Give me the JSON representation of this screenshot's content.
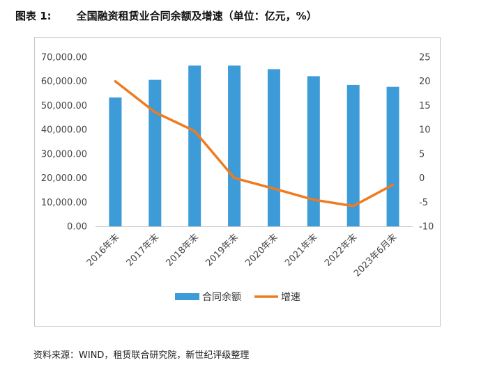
{
  "figure": {
    "label": "图表 1:",
    "title": "全国融资租赁业合同余额及增速（单位：亿元，%）"
  },
  "source": "资料来源：WIND，租赁联合研究院，新世纪评级整理",
  "colors": {
    "bar": "#3d9bd8",
    "line": "#ef7b1f",
    "axis": "#c8c8c8",
    "text": "#444444"
  },
  "chart_data": {
    "type": "bar+line",
    "categories": [
      "2016年末",
      "2017年末",
      "2018年末",
      "2019年末",
      "2020年末",
      "2021年末",
      "2022年末",
      "2023年6月末"
    ],
    "series": [
      {
        "name": "合同余额",
        "type": "bar",
        "axis": "left",
        "values": [
          53300,
          60600,
          66500,
          66500,
          65000,
          62100,
          58500,
          57700
        ]
      },
      {
        "name": "增速",
        "type": "line",
        "axis": "right",
        "values": [
          20.0,
          13.6,
          9.7,
          0.0,
          -2.2,
          -4.5,
          -5.8,
          -1.4
        ]
      }
    ],
    "y_left": {
      "min": 0,
      "max": 70000,
      "step": 10000,
      "tick_labels": [
        "0.00",
        "10,000.00",
        "20,000.00",
        "30,000.00",
        "40,000.00",
        "50,000.00",
        "60,000.00",
        "70,000.00"
      ]
    },
    "y_right": {
      "min": -10,
      "max": 25,
      "step": 5,
      "tick_labels": [
        "-10",
        "-5",
        "0",
        "5",
        "10",
        "15",
        "20",
        "25"
      ]
    },
    "legend": {
      "position": "bottom",
      "items": [
        "合同余额",
        "增速"
      ]
    }
  }
}
